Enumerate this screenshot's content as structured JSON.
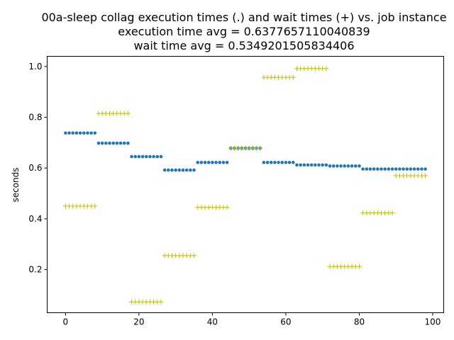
{
  "chart_data": {
    "type": "scatter",
    "title": [
      "00a-sleep collag execution times (.) and wait times (+) vs. job instance",
      "execution time avg = 0.6377657110040839",
      "wait time avg = 0.5349201505834406"
    ],
    "xlabel": "",
    "ylabel": "seconds",
    "xlim": [
      -5,
      103
    ],
    "ylim": [
      0.03,
      1.04
    ],
    "xticks": [
      0,
      20,
      40,
      60,
      80,
      100
    ],
    "yticks": [
      0.2,
      0.4,
      0.6,
      0.8,
      1.0
    ],
    "ytick_labels": [
      "0.2",
      "0.4",
      "0.6",
      "0.8",
      "1.0"
    ],
    "grid": false,
    "legend": "none",
    "series": [
      {
        "marker": "dot",
        "color": "#1f77b4",
        "groups": [
          {
            "x_start": 0,
            "count": 9,
            "y": 0.738
          },
          {
            "x_start": 9,
            "count": 9,
            "y": 0.698
          },
          {
            "x_start": 18,
            "count": 9,
            "y": 0.645
          },
          {
            "x_start": 27,
            "count": 9,
            "y": 0.592
          },
          {
            "x_start": 36,
            "count": 9,
            "y": 0.622
          },
          {
            "x_start": 45,
            "count": 9,
            "y": 0.678
          },
          {
            "x_start": 54,
            "count": 9,
            "y": 0.622
          },
          {
            "x_start": 63,
            "count": 9,
            "y": 0.612
          },
          {
            "x_start": 72,
            "count": 9,
            "y": 0.608
          },
          {
            "x_start": 81,
            "count": 18,
            "y": 0.596
          }
        ]
      },
      {
        "marker": "plus",
        "color": "#bfbf00",
        "groups": [
          {
            "x_start": 0,
            "count": 9,
            "y": 0.45
          },
          {
            "x_start": 9,
            "count": 9,
            "y": 0.815
          },
          {
            "x_start": 18,
            "count": 9,
            "y": 0.073
          },
          {
            "x_start": 27,
            "count": 9,
            "y": 0.255
          },
          {
            "x_start": 36,
            "count": 9,
            "y": 0.445
          },
          {
            "x_start": 45,
            "count": 9,
            "y": 0.678
          },
          {
            "x_start": 54,
            "count": 9,
            "y": 0.957
          },
          {
            "x_start": 63,
            "count": 9,
            "y": 0.992
          },
          {
            "x_start": 72,
            "count": 9,
            "y": 0.212
          },
          {
            "x_start": 81,
            "count": 9,
            "y": 0.423
          },
          {
            "x_start": 90,
            "count": 9,
            "y": 0.57
          }
        ]
      }
    ]
  }
}
